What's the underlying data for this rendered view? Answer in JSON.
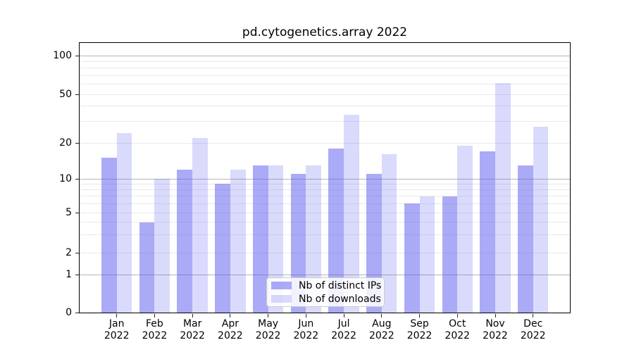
{
  "chart_data": {
    "type": "bar",
    "title": "pd.cytogenetics.array 2022",
    "categories": [
      "Jan 2022",
      "Feb 2022",
      "Mar 2022",
      "Apr 2022",
      "May 2022",
      "Jun 2022",
      "Jul 2022",
      "Aug 2022",
      "Sep 2022",
      "Oct 2022",
      "Nov 2022",
      "Dec 2022"
    ],
    "x_tick_top_lines": [
      "Jan",
      "Feb",
      "Mar",
      "Apr",
      "May",
      "Jun",
      "Jul",
      "Aug",
      "Sep",
      "Oct",
      "Nov",
      "Dec"
    ],
    "x_tick_bottom_line": "2022",
    "series": [
      {
        "name": "Nb of distinct IPs",
        "values": [
          15,
          4,
          12,
          9,
          13,
          11,
          18,
          11,
          6,
          7,
          17,
          13
        ],
        "fill": "rgba(85,85,240,0.5)"
      },
      {
        "name": "Nb of downloads",
        "values": [
          24,
          10,
          22,
          12,
          13,
          13,
          34,
          16,
          7,
          19,
          61,
          27
        ],
        "fill": "rgba(85,85,240,0.22)"
      }
    ],
    "ylabel": "",
    "xlabel": "",
    "yscale": "symlog",
    "ylim": [
      0,
      135
    ],
    "ytick_labels": [
      "0",
      "1",
      "2",
      "5",
      "10",
      "20",
      "50",
      "100"
    ],
    "ytick_values": [
      0,
      1,
      2,
      5,
      10,
      20,
      50,
      100
    ],
    "grid": {
      "major_values": [
        1,
        10,
        100
      ],
      "minor_values": [
        2,
        3,
        4,
        5,
        6,
        7,
        8,
        9,
        20,
        30,
        40,
        50,
        60,
        70,
        80,
        90
      ],
      "major_color": "#b4b4b4",
      "minor_color": "#e9e9e9"
    },
    "legend_position": "lower center",
    "colors": {
      "distinct_ips_bar": "#aaaaf2",
      "downloads_bar": "#dcdcfa",
      "spine": "#000000",
      "text": "#000000"
    }
  }
}
